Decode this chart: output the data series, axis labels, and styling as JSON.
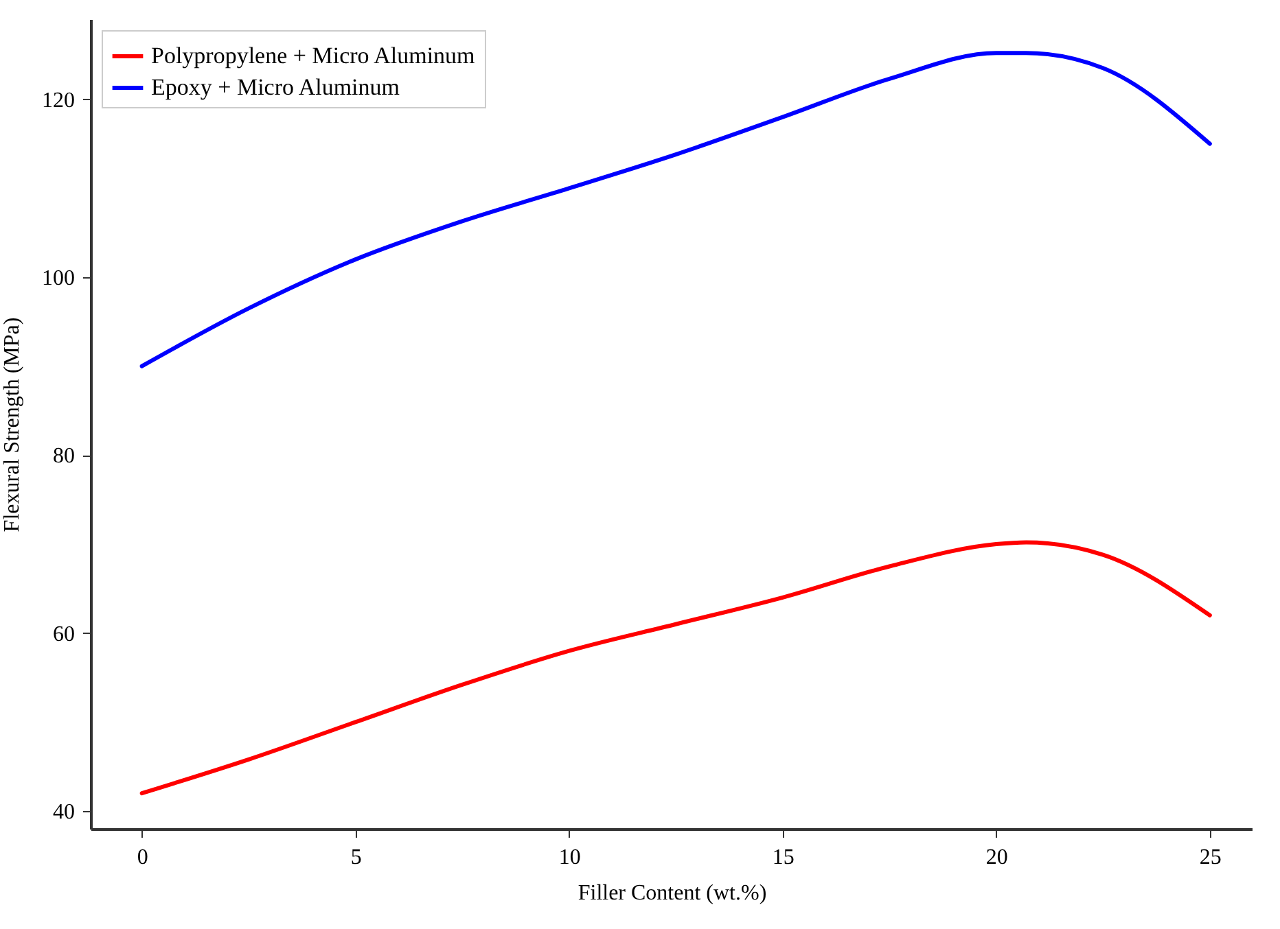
{
  "chart_data": {
    "type": "line",
    "xlabel": "Filler Content (wt.%)",
    "ylabel": "Flexural Strength (MPa)",
    "x": [
      0,
      2.5,
      5,
      7.5,
      10,
      12.5,
      15,
      17.5,
      20,
      20.7,
      22.5,
      25
    ],
    "series": [
      {
        "name": "Polypropylene + Micro Aluminum",
        "color": "#ff0000",
        "values": [
          42,
          45.8,
          50,
          54.2,
          58,
          61,
          64,
          67.5,
          70,
          70.2,
          68.8,
          62
        ]
      },
      {
        "name": "Epoxy + Micro Aluminum",
        "color": "#0000ff",
        "values": [
          90,
          96.5,
          102,
          106.3,
          110,
          113.8,
          118,
          122.3,
          125.2,
          125.2,
          123.5,
          115
        ]
      }
    ],
    "xlim": [
      -1.2,
      26
    ],
    "xticks": [
      0,
      5,
      10,
      15,
      20,
      25
    ],
    "ylim": [
      38,
      129
    ],
    "yticks": [
      40,
      60,
      80,
      100,
      120
    ],
    "grid": false,
    "legend": "top left",
    "marker": "none",
    "line_style": "solid"
  }
}
